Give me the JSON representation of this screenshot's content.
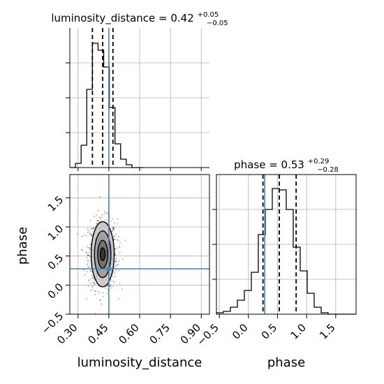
{
  "chart_data": [
    {
      "type": "histogram",
      "panel": "luminosity_distance-marginal",
      "title": {
        "prefix": "luminosity_distance = 0.42",
        "sup": "+0.05",
        "sub": "−0.05"
      },
      "xlim": [
        0.26,
        0.94
      ],
      "ylim": [
        0,
        1
      ],
      "bin_edges": [
        0.26,
        0.2875,
        0.315,
        0.3425,
        0.37,
        0.3975,
        0.425,
        0.4525,
        0.48,
        0.5075,
        0.535,
        0.5625,
        0.59,
        0.6175
      ],
      "counts": [
        0.0,
        0.03,
        0.16,
        0.56,
        0.89,
        0.84,
        0.72,
        0.43,
        0.17,
        0.06,
        0.02,
        0.0,
        0.0
      ],
      "quantiles": [
        0.37,
        0.42,
        0.47
      ],
      "truth": 0.45,
      "grid": true
    },
    {
      "type": "histogram",
      "panel": "phase-marginal",
      "title": {
        "prefix": "phase = 0.53",
        "sup": "+0.29",
        "sub": "−0.28"
      },
      "xlim": [
        -0.55,
        1.85
      ],
      "ylim": [
        0,
        1
      ],
      "bin_edges": [
        -0.55,
        -0.43,
        -0.31,
        -0.19,
        -0.07,
        0.05,
        0.17,
        0.29,
        0.41,
        0.53,
        0.65,
        0.77,
        0.89,
        1.01,
        1.13,
        1.25,
        1.37,
        1.49,
        1.61,
        1.73,
        1.85
      ],
      "counts": [
        0.01,
        0.02,
        0.05,
        0.1,
        0.17,
        0.3,
        0.57,
        0.75,
        0.9,
        0.89,
        0.75,
        0.48,
        0.31,
        0.15,
        0.05,
        0.01,
        0.0,
        0.0,
        0.0,
        0.0
      ],
      "quantiles": [
        0.25,
        0.53,
        0.82
      ],
      "truth": 0.28,
      "x_ticks": [
        -0.5,
        0.0,
        0.5,
        1.0,
        1.5
      ],
      "x_tick_labels": [
        "−0.5",
        "0.0",
        "0.5",
        "1.0",
        "1.5"
      ],
      "xlabel": "phase",
      "grid": true
    },
    {
      "type": "scatter-density",
      "panel": "luminosity_distance-vs-phase",
      "xlim": [
        0.26,
        0.94
      ],
      "ylim": [
        -0.5,
        1.9
      ],
      "x_ticks": [
        0.3,
        0.45,
        0.6,
        0.75,
        0.9
      ],
      "x_tick_labels": [
        "0.30",
        "0.45",
        "0.60",
        "0.75",
        "0.90"
      ],
      "y_ticks": [
        -0.5,
        0.0,
        0.5,
        1.0,
        1.5
      ],
      "y_tick_labels": [
        "−0.5",
        "0.0",
        "0.5",
        "1.0",
        "1.5"
      ],
      "xlabel": "luminosity_distance",
      "ylabel": "phase",
      "center": [
        0.42,
        0.53
      ],
      "spread": [
        0.035,
        0.3
      ],
      "contour_levels": [
        {
          "rx": 0.012,
          "ry": 0.11
        },
        {
          "rx": 0.024,
          "ry": 0.24
        },
        {
          "rx": 0.04,
          "ry": 0.4
        },
        {
          "rx": 0.056,
          "ry": 0.56
        }
      ],
      "truth": [
        0.45,
        0.28
      ],
      "grid": true
    }
  ],
  "colors": {
    "truth": "#4682b4",
    "hist": "#000000",
    "grid": "#b0b0b0",
    "points": "#000000"
  }
}
